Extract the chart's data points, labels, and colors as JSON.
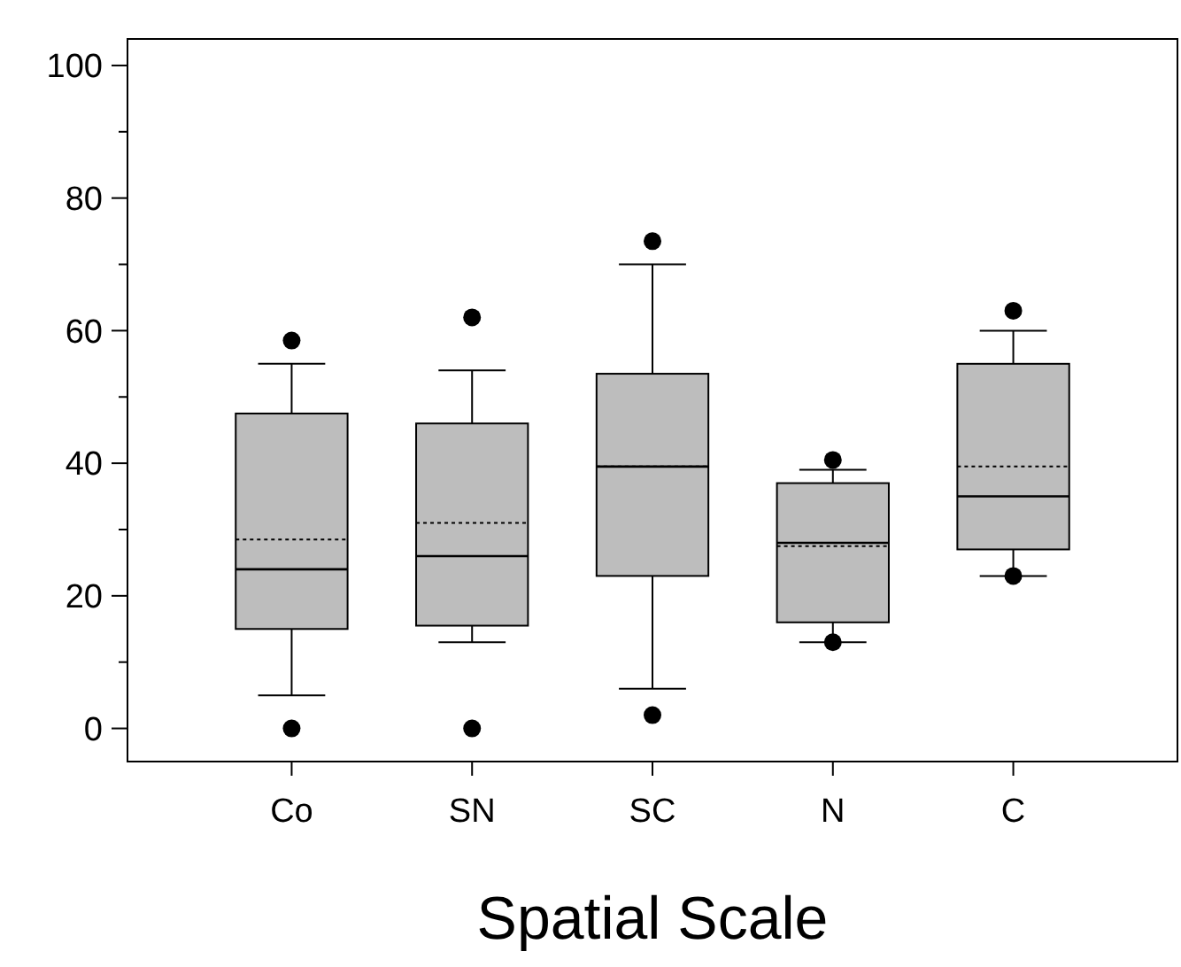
{
  "chart_data": {
    "type": "box",
    "xlabel": "Spatial Scale",
    "categories": [
      "Co",
      "SN",
      "SC",
      "N",
      "C"
    ],
    "boxes": [
      {
        "low": 5,
        "q1": 15,
        "median": 24,
        "q3": 47.5,
        "high": 55,
        "mean": 28.5,
        "outliers": [
          0,
          58.5
        ]
      },
      {
        "low": 13,
        "q1": 15.5,
        "median": 26,
        "q3": 46,
        "high": 54,
        "mean": 31,
        "outliers": [
          0,
          62
        ]
      },
      {
        "low": 6,
        "q1": 23,
        "median": 39.5,
        "q3": 53.5,
        "high": 70,
        "mean": 39.5,
        "outliers": [
          2,
          73.5
        ]
      },
      {
        "low": 13,
        "q1": 16,
        "median": 28,
        "q3": 37,
        "high": 39,
        "mean": 27.5,
        "outliers": [
          13,
          40.5
        ]
      },
      {
        "low": 23,
        "q1": 27,
        "median": 35,
        "q3": 55,
        "high": 60,
        "mean": 39.5,
        "outliers": [
          23,
          63
        ]
      }
    ],
    "color": "#bdbdbd",
    "ylim": [
      -5,
      104
    ],
    "yticks": [
      0,
      {
        "value": 10,
        "label": null
      },
      20,
      {
        "value": 30,
        "label": null
      },
      40,
      {
        "value": 50,
        "label": null
      },
      60,
      {
        "value": 70,
        "label": null
      },
      80,
      {
        "value": 90,
        "label": null
      },
      100
    ],
    "grid": false
  }
}
